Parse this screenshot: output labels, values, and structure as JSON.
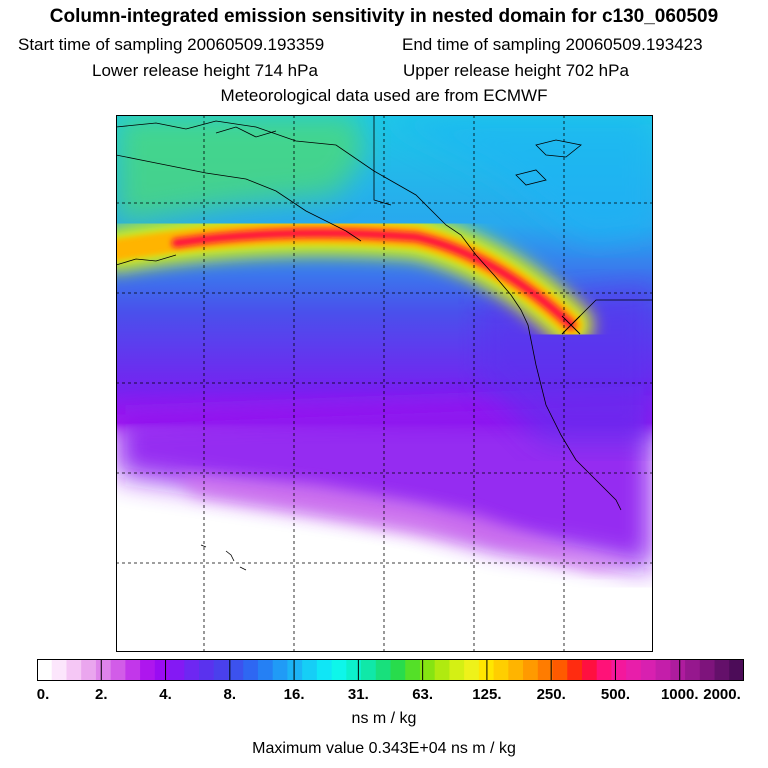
{
  "title": "Column-integrated emission sensitivity in nested domain for c130_060509",
  "sampling": {
    "start_label": "Start time of sampling",
    "start_value": "20060509.193359",
    "end_label": "End time of sampling",
    "end_value": "20060509.193423"
  },
  "release": {
    "lower_label": "Lower release height",
    "lower_value": "714 hPa",
    "upper_label": "Upper release height",
    "upper_value": "702 hPa"
  },
  "met_data": "Meteorological data used are from ECMWF",
  "colorbar": {
    "ticks": [
      "0.",
      "2.",
      "4.",
      "8.",
      "16.",
      "31.",
      "63.",
      "125.",
      "250.",
      "500.",
      "1000.",
      "2000."
    ],
    "colors": [
      "#ffffff",
      "#fce6fc",
      "#f5c7f5",
      "#eaa6ee",
      "#de84ea",
      "#d25ce8",
      "#c237ea",
      "#ae16ee",
      "#9a0cf2",
      "#8419f4",
      "#6e27f2",
      "#5a32ee",
      "#4a40ec",
      "#3c52ee",
      "#2e67f2",
      "#2580f4",
      "#209bf6",
      "#1cb4f6",
      "#16cef6",
      "#10e6f6",
      "#0ef6ea",
      "#0cf0cc",
      "#10e8a8",
      "#18e07c",
      "#28dc4c",
      "#54e028",
      "#86e412",
      "#b0ea10",
      "#d4f014",
      "#eef21a",
      "#ffe600",
      "#ffce00",
      "#ffb400",
      "#ff9a00",
      "#ff7c00",
      "#ff5a00",
      "#ff2c10",
      "#ff1040",
      "#ff1278",
      "#f4189c",
      "#e81eaa",
      "#d820b0",
      "#c41eaa",
      "#ae1c9e",
      "#96188e",
      "#7e147c",
      "#64106a",
      "#4c0c58"
    ],
    "units": "ns m / kg"
  },
  "max_label": "Maximum value",
  "max_value": "0.343E+04 ns m / kg"
}
